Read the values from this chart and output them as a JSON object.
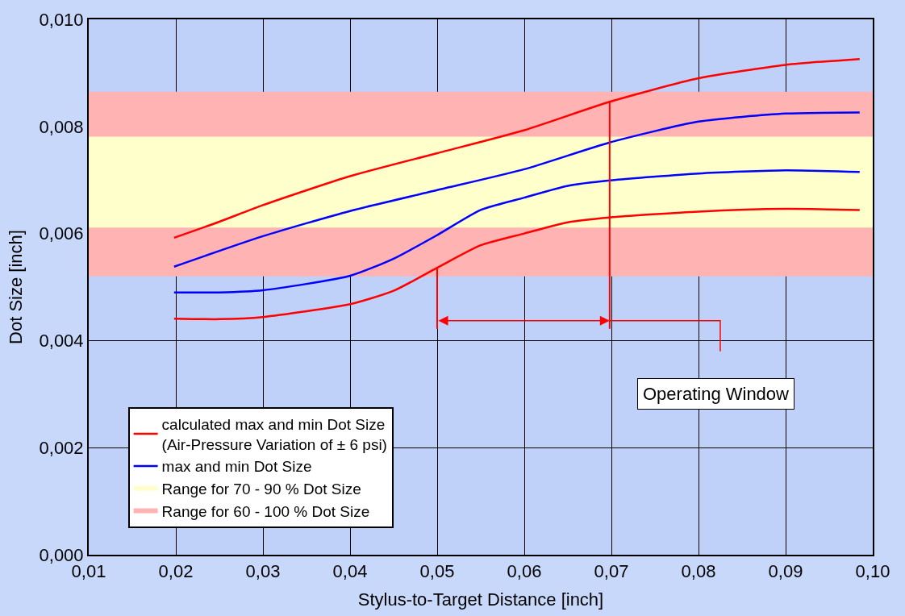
{
  "chart_data": {
    "type": "line",
    "xlabel": "Stylus-to-Target Distance [inch]",
    "ylabel": "Dot Size [inch]",
    "xlim": [
      0.01,
      0.1
    ],
    "ylim": [
      0,
      0.01
    ],
    "xticks": [
      {
        "value": 0.01,
        "label": "0,01"
      },
      {
        "value": 0.02,
        "label": "0,02"
      },
      {
        "value": 0.03,
        "label": "0,03"
      },
      {
        "value": 0.04,
        "label": "0,04"
      },
      {
        "value": 0.05,
        "label": "0,05"
      },
      {
        "value": 0.06,
        "label": "0,06"
      },
      {
        "value": 0.07,
        "label": "0,07"
      },
      {
        "value": 0.08,
        "label": "0,08"
      },
      {
        "value": 0.09,
        "label": "0,09"
      },
      {
        "value": 0.1,
        "label": "0,10"
      }
    ],
    "yticks": [
      {
        "value": 0,
        "label": "0,000"
      },
      {
        "value": 0.002,
        "label": "0,002"
      },
      {
        "value": 0.004,
        "label": "0,004"
      },
      {
        "value": 0.006,
        "label": "0,006"
      },
      {
        "value": 0.008,
        "label": "0,008"
      },
      {
        "value": 0.01,
        "label": "0,010"
      }
    ],
    "grid": true,
    "legend": "bottom left",
    "marker": "none",
    "line_style": "solid",
    "series": [
      {
        "name": "calculated max and min Dot Size\n(Air-Pressure Variation of ± 6 psi)",
        "color": "#ff0000",
        "x": [
          0.0198,
          0.025,
          0.03,
          0.04,
          0.05,
          0.06,
          0.0698,
          0.08,
          0.09,
          0.0985
        ],
        "values": [
          0.00592,
          0.00622,
          0.00653,
          0.00707,
          0.0075,
          0.00793,
          0.00846,
          0.0089,
          0.00915,
          0.00926
        ]
      },
      {
        "color": "#ff0000",
        "x": [
          0.0198,
          0.025,
          0.03,
          0.04,
          0.045,
          0.05,
          0.055,
          0.06,
          0.065,
          0.0698,
          0.08,
          0.09,
          0.0985
        ],
        "values": [
          0.00441,
          0.0044,
          0.00444,
          0.00468,
          0.00493,
          0.00536,
          0.00578,
          0.006,
          0.00621,
          0.0063,
          0.00641,
          0.00646,
          0.00644
        ]
      },
      {
        "name": "max and min Dot Size",
        "color": "#0000ff",
        "x": [
          0.0198,
          0.03,
          0.04,
          0.05,
          0.06,
          0.0698,
          0.08,
          0.09,
          0.0985
        ],
        "values": [
          0.00538,
          0.00595,
          0.00642,
          0.00681,
          0.0072,
          0.0077,
          0.00809,
          0.00824,
          0.00826
        ]
      },
      {
        "color": "#0000ff",
        "x": [
          0.0198,
          0.025,
          0.03,
          0.04,
          0.045,
          0.05,
          0.055,
          0.06,
          0.065,
          0.0698,
          0.08,
          0.09,
          0.0985
        ],
        "values": [
          0.0049,
          0.0049,
          0.00494,
          0.00521,
          0.00553,
          0.00597,
          0.00644,
          0.00667,
          0.00689,
          0.00699,
          0.00712,
          0.00718,
          0.00715
        ]
      }
    ],
    "bands": [
      {
        "axis": "y",
        "from": 0.0052,
        "to": 0.00865,
        "label": "Range for 60 - 100 % Dot Size",
        "color": "#ffb3b3"
      },
      {
        "axis": "y",
        "from": 0.00611,
        "to": 0.00781,
        "label": "Range for 70 - 90 % Dot Size",
        "color": "#ffffcc"
      }
    ],
    "ref_lines": [
      {
        "axis": "x",
        "value": 0.05,
        "label": null,
        "color": "#ff0000"
      },
      {
        "axis": "x",
        "value": 0.0698,
        "label": null,
        "color": "#ff0000"
      }
    ],
    "annotations": [
      "Operating Window"
    ]
  }
}
